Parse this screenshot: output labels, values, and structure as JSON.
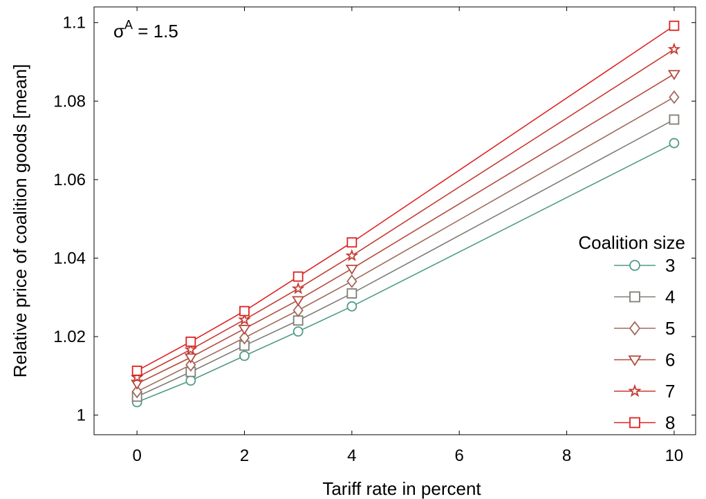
{
  "chart_data": {
    "type": "line",
    "x": [
      0,
      1,
      2,
      3,
      4,
      10
    ],
    "xlabel": "Tariff rate in percent",
    "ylabel": "Relative price of coalition goods [mean]",
    "xlim": [
      -0.8,
      10.4
    ],
    "ylim": [
      0.995,
      1.104
    ],
    "xticks": [
      0,
      2,
      4,
      6,
      8,
      10
    ],
    "yticks": [
      1,
      1.02,
      1.04,
      1.06,
      1.08,
      1.1
    ],
    "ytick_labels": [
      "1",
      "1.02",
      "1.04",
      "1.06",
      "1.08",
      "1.1"
    ],
    "grid": false,
    "annotation": {
      "symbol": "σ",
      "superscript": "A",
      "text": " = 1.5"
    },
    "legend": {
      "title": "Coalition size",
      "placement": "right"
    },
    "series": [
      {
        "name": "3",
        "marker": "circle",
        "color": "#4f9a86",
        "values": [
          1.0033,
          1.0088,
          1.0151,
          1.0213,
          1.0277,
          1.0693
        ]
      },
      {
        "name": "4",
        "marker": "square",
        "color": "#7d7d76",
        "values": [
          1.0047,
          1.011,
          1.0177,
          1.0241,
          1.031,
          1.0753
        ]
      },
      {
        "name": "5",
        "marker": "diamond",
        "color": "#a06a5a",
        "values": [
          1.006,
          1.0128,
          1.0197,
          1.0267,
          1.0341,
          1.081
        ]
      },
      {
        "name": "6",
        "marker": "triangle-down",
        "color": "#b44a3e",
        "values": [
          1.008,
          1.0147,
          1.022,
          1.0293,
          1.0373,
          1.0869
        ]
      },
      {
        "name": "7",
        "marker": "star",
        "color": "#c53a30",
        "values": [
          1.0096,
          1.0167,
          1.0243,
          1.0322,
          1.0406,
          1.0932
        ]
      },
      {
        "name": "8",
        "marker": "square",
        "color": "#e02020",
        "values": [
          1.0113,
          1.0187,
          1.0265,
          1.0353,
          1.044,
          1.0992
        ]
      }
    ]
  }
}
